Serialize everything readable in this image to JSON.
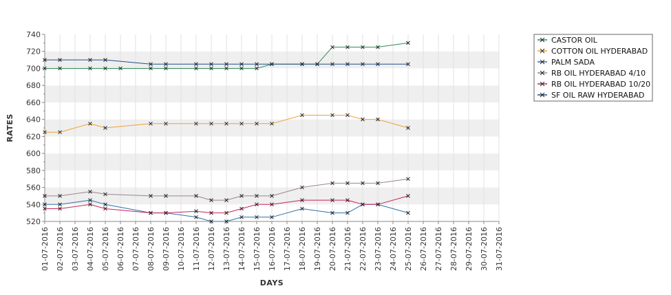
{
  "chart_data": {
    "type": "line",
    "xlabel": "DAYS",
    "ylabel": "RATES",
    "ylim": [
      520,
      740
    ],
    "y_ticks": [
      520,
      540,
      560,
      580,
      600,
      620,
      640,
      660,
      680,
      700,
      720,
      740
    ],
    "grid": "alternating horizontal bands",
    "legend_position": "top-right",
    "categories": [
      "01-07-2016",
      "02-07-2016",
      "03-07-2016",
      "04-07-2016",
      "05-07-2016",
      "06-07-2016",
      "07-07-2016",
      "08-07-2016",
      "09-07-2016",
      "10-07-2016",
      "11-07-2016",
      "12-07-2016",
      "13-07-2016",
      "14-07-2016",
      "15-07-2016",
      "16-07-2016",
      "17-07-2016",
      "18-07-2016",
      "19-07-2016",
      "20-07-2016",
      "21-07-2016",
      "22-07-2016",
      "23-07-2016",
      "24-07-2016",
      "25-07-2016",
      "26-07-2016",
      "27-07-2016",
      "28-07-2016",
      "29-07-2016",
      "30-07-2016",
      "31-07-2016"
    ],
    "series": [
      {
        "name": "CASTOR OIL",
        "color": "#2e8b57",
        "points": [
          [
            1,
            700
          ],
          [
            2,
            700
          ],
          [
            4,
            700
          ],
          [
            5,
            700
          ],
          [
            6,
            700
          ],
          [
            8,
            700
          ],
          [
            9,
            700
          ],
          [
            11,
            700
          ],
          [
            12,
            700
          ],
          [
            13,
            700
          ],
          [
            14,
            700
          ],
          [
            15,
            700
          ],
          [
            16,
            705
          ],
          [
            18,
            705
          ],
          [
            19,
            705
          ],
          [
            20,
            725
          ],
          [
            21,
            725
          ],
          [
            22,
            725
          ],
          [
            23,
            725
          ],
          [
            25,
            730
          ]
        ]
      },
      {
        "name": "COTTON OIL HYDERABAD",
        "color": "#f0a030",
        "points": [
          [
            1,
            625
          ],
          [
            2,
            625
          ],
          [
            4,
            635
          ],
          [
            5,
            630
          ],
          [
            8,
            635
          ],
          [
            9,
            635
          ],
          [
            11,
            635
          ],
          [
            12,
            635
          ],
          [
            13,
            635
          ],
          [
            14,
            635
          ],
          [
            15,
            635
          ],
          [
            16,
            635
          ],
          [
            18,
            645
          ],
          [
            20,
            645
          ],
          [
            21,
            645
          ],
          [
            22,
            640
          ],
          [
            23,
            640
          ],
          [
            25,
            630
          ]
        ]
      },
      {
        "name": "PALM SADA",
        "color": "#2a6fa8",
        "points": [
          [
            1,
            540
          ],
          [
            2,
            540
          ],
          [
            4,
            545
          ],
          [
            5,
            540
          ],
          [
            8,
            530
          ],
          [
            9,
            530
          ],
          [
            11,
            525
          ],
          [
            12,
            520
          ],
          [
            13,
            520
          ],
          [
            14,
            525
          ],
          [
            15,
            525
          ],
          [
            16,
            525
          ],
          [
            18,
            535
          ],
          [
            20,
            530
          ],
          [
            21,
            530
          ],
          [
            22,
            540
          ],
          [
            23,
            540
          ],
          [
            25,
            530
          ]
        ]
      },
      {
        "name": "RB OIL HYDERABAD  4/10",
        "color": "#9a8290",
        "points": [
          [
            1,
            550
          ],
          [
            2,
            550
          ],
          [
            4,
            555
          ],
          [
            5,
            552
          ],
          [
            8,
            550
          ],
          [
            9,
            550
          ],
          [
            11,
            550
          ],
          [
            12,
            545
          ],
          [
            13,
            545
          ],
          [
            14,
            550
          ],
          [
            15,
            550
          ],
          [
            16,
            550
          ],
          [
            18,
            560
          ],
          [
            20,
            565
          ],
          [
            21,
            565
          ],
          [
            22,
            565
          ],
          [
            23,
            565
          ],
          [
            25,
            570
          ]
        ]
      },
      {
        "name": "RB OIL HYDERABAD 10/20",
        "color": "#c8205a",
        "points": [
          [
            1,
            535
          ],
          [
            2,
            535
          ],
          [
            4,
            540
          ],
          [
            5,
            535
          ],
          [
            8,
            530
          ],
          [
            9,
            530
          ],
          [
            11,
            532
          ],
          [
            12,
            530
          ],
          [
            13,
            530
          ],
          [
            14,
            535
          ],
          [
            15,
            540
          ],
          [
            16,
            540
          ],
          [
            18,
            545
          ],
          [
            20,
            545
          ],
          [
            21,
            545
          ],
          [
            22,
            540
          ],
          [
            23,
            540
          ],
          [
            25,
            550
          ]
        ]
      },
      {
        "name": "SF OIL RAW HYDERABAD",
        "color": "#1f4e8c",
        "points": [
          [
            1,
            710
          ],
          [
            2,
            710
          ],
          [
            4,
            710
          ],
          [
            5,
            710
          ],
          [
            8,
            705
          ],
          [
            9,
            705
          ],
          [
            11,
            705
          ],
          [
            12,
            705
          ],
          [
            13,
            705
          ],
          [
            14,
            705
          ],
          [
            15,
            705
          ],
          [
            16,
            705
          ],
          [
            18,
            705
          ],
          [
            19,
            705
          ],
          [
            20,
            705
          ],
          [
            21,
            705
          ],
          [
            22,
            705
          ],
          [
            23,
            705
          ],
          [
            25,
            705
          ]
        ]
      }
    ]
  }
}
